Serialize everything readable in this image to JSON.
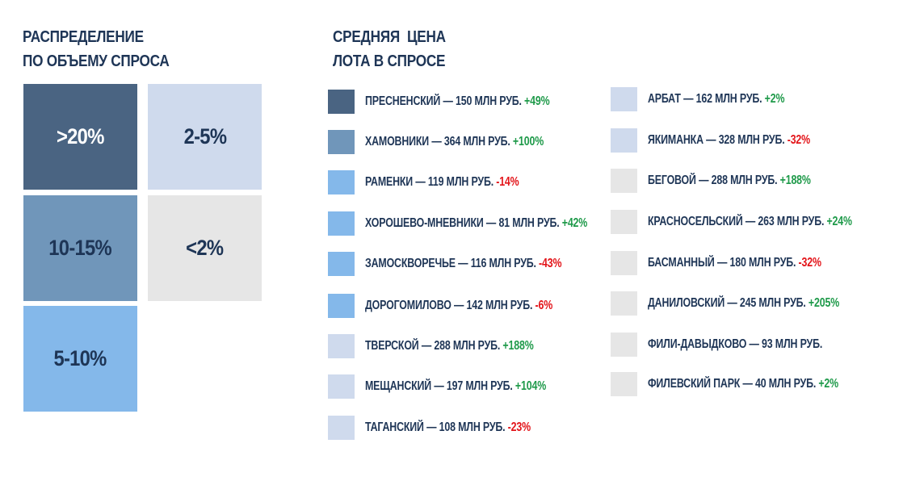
{
  "left_panel": {
    "title_lines": [
      "РАСПРЕДЕЛЕНИЕ",
      "ПО ОБЪЕМУ СПРОСА"
    ]
  },
  "right_panel": {
    "title_lines": [
      "СРЕДНЯЯ  ЦЕНА",
      "ЛОТА В СПРОСЕ"
    ]
  },
  "colors": {
    "title_text": "#1e3556",
    "tier_over_20": "#4a6482",
    "tier_10_15": "#7096ba",
    "tier_5_10": "#84b8ea",
    "tier_2_5": "#cfdaed",
    "tier_under_2": "#e6e6e6",
    "change_positive": "#1f9a4a",
    "change_negative": "#e3151a"
  },
  "chart_data": {
    "type": "table",
    "tiers": [
      {
        "id": "gt20",
        "label": ">20%",
        "color": "#4a6482",
        "text_color": "#ffffff"
      },
      {
        "id": "b2_5",
        "label": "2-5%",
        "color": "#cfdaed",
        "text_color": "#1e3556"
      },
      {
        "id": "b10_15",
        "label": "10-15%",
        "color": "#7096ba",
        "text_color": "#1e3556"
      },
      {
        "id": "lt2",
        "label": "<2%",
        "color": "#e6e6e6",
        "text_color": "#1e3556"
      },
      {
        "id": "b5_10",
        "label": "5-10%",
        "color": "#84b8ea",
        "text_color": "#1e3556"
      }
    ],
    "districts": [
      {
        "name": "ПРЕСНЕНСКИЙ",
        "price": "150 МЛН РУБ.",
        "change": "+49%",
        "tier": "gt20"
      },
      {
        "name": "ХАМОВНИКИ",
        "price": "364 МЛН РУБ.",
        "change": "+100%",
        "tier": "b10_15"
      },
      {
        "name": "РАМЕНКИ",
        "price": "119 МЛН РУБ.",
        "change": "-14%",
        "tier": "b5_10"
      },
      {
        "name": "ХОРОШЕВО-МНЕВНИКИ",
        "price": "81 МЛН РУБ.",
        "change": "+42%",
        "tier": "b5_10"
      },
      {
        "name": "ЗАМОСКВОРЕЧЬЕ",
        "price": "116 МЛН РУБ.",
        "change": "-43%",
        "tier": "b5_10"
      },
      {
        "name": "ДОРОГОМИЛОВО",
        "price": "142 МЛН РУБ.",
        "change": "-6%",
        "tier": "b5_10"
      },
      {
        "name": "ТВЕРСКОЙ",
        "price": "288 МЛН РУБ.",
        "change": "+188%",
        "tier": "b2_5"
      },
      {
        "name": "МЕЩАНСКИЙ",
        "price": "197 МЛН РУБ.",
        "change": "+104%",
        "tier": "b2_5"
      },
      {
        "name": "ТАГАНСКИЙ",
        "price": "108 МЛН РУБ.",
        "change": "-23%",
        "tier": "b2_5"
      },
      {
        "name": "АРБАТ",
        "price": "162 МЛН РУБ.",
        "change": "+2%",
        "tier": "b2_5"
      },
      {
        "name": "ЯКИМАНКА",
        "price": "328 МЛН РУБ.",
        "change": "-32%",
        "tier": "b2_5"
      },
      {
        "name": "БЕГОВОЙ",
        "price": "288 МЛН РУБ.",
        "change": "+188%",
        "tier": "lt2"
      },
      {
        "name": "КРАСНОСЕЛЬСКИЙ",
        "price": "263 МЛН РУБ.",
        "change": "+24%",
        "tier": "lt2"
      },
      {
        "name": "БАСМАННЫЙ",
        "price": "180 МЛН РУБ.",
        "change": "-32%",
        "tier": "lt2"
      },
      {
        "name": "ДАНИЛОВСКИЙ",
        "price": "245 МЛН РУБ.",
        "change": "+205%",
        "tier": "lt2"
      },
      {
        "name": "ФИЛИ-ДАВЫДКОВО",
        "price": "93 МЛН РУБ.",
        "change": "",
        "tier": "lt2"
      },
      {
        "name": "ФИЛЕВСКИЙ ПАРК",
        "price": "40 МЛН РУБ.",
        "change": "+2%",
        "tier": "lt2"
      }
    ]
  }
}
